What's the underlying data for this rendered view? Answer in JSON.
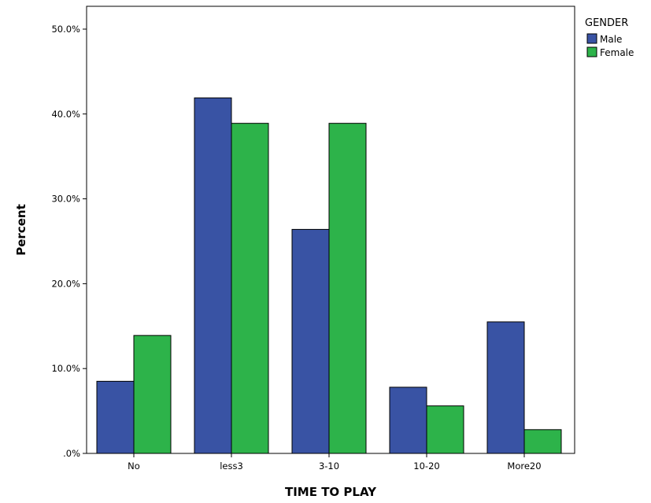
{
  "chart_data": {
    "type": "bar",
    "xlabel": "TIME TO PLAY",
    "ylabel": "Percent",
    "categories": [
      "No",
      "less3",
      "3-10",
      "10-20",
      "More20"
    ],
    "ylim": [
      0,
      50
    ],
    "yticks": [
      ".0%",
      "10.0%",
      "20.0%",
      "30.0%",
      "40.0%",
      "50.0%"
    ],
    "legend": {
      "title": "GENDER",
      "placement": "top-right, outside plot"
    },
    "grid": false,
    "series": [
      {
        "name": "Male",
        "color": "#3953a4",
        "values": [
          8.5,
          41.9,
          26.4,
          7.8,
          15.5
        ]
      },
      {
        "name": "Female",
        "color": "#2db34a",
        "values": [
          13.9,
          38.9,
          38.9,
          5.6,
          2.8
        ]
      }
    ]
  }
}
